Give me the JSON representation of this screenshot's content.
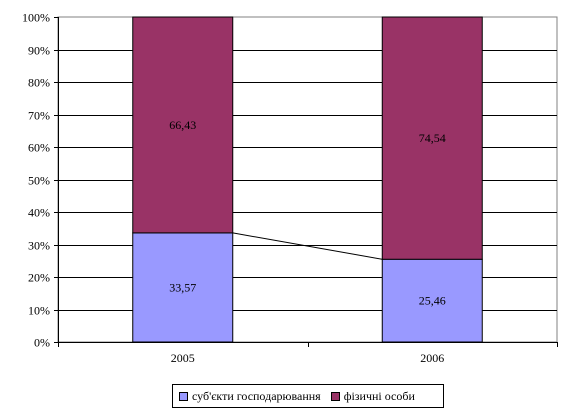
{
  "chart_data": {
    "type": "bar",
    "stacked": true,
    "percent_stacked": true,
    "categories": [
      "2005",
      "2006"
    ],
    "series": [
      {
        "name": "суб'єкти господарювання",
        "values": [
          33.57,
          25.46
        ],
        "labels": [
          "33,57",
          "25,46"
        ],
        "color": "#9999ff"
      },
      {
        "name": "фізичні особи",
        "values": [
          66.43,
          74.54
        ],
        "labels": [
          "66,43",
          "74,54"
        ],
        "color": "#993366"
      }
    ],
    "y_ticks": [
      "0%",
      "10%",
      "20%",
      "30%",
      "40%",
      "50%",
      "60%",
      "70%",
      "80%",
      "90%",
      "100%"
    ],
    "ylim": [
      0,
      100
    ],
    "grid": true,
    "series_lines": true,
    "legend_position": "bottom"
  }
}
